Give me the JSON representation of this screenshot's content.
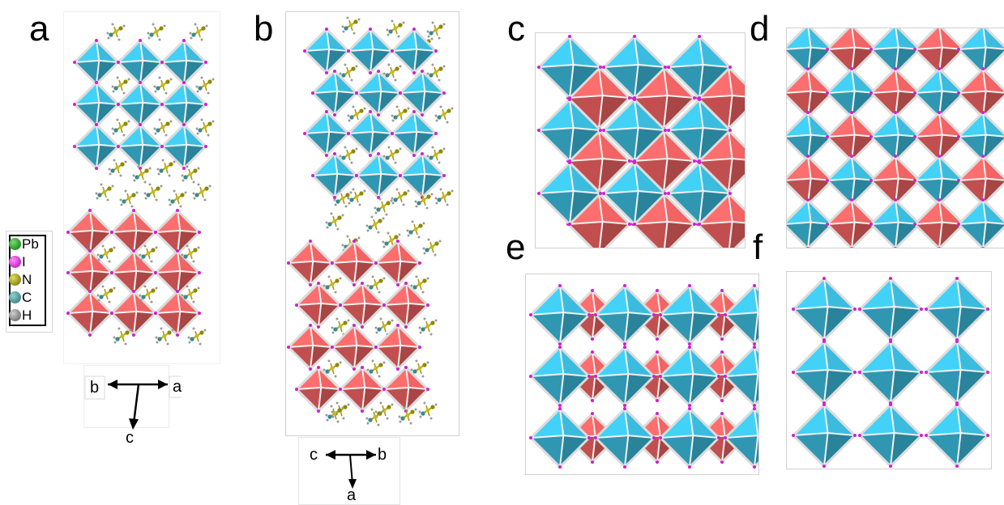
{
  "panels": [
    {
      "label": "a"
    },
    {
      "label": "b"
    },
    {
      "label": "c"
    },
    {
      "label": "d"
    },
    {
      "label": "e"
    },
    {
      "label": "f"
    }
  ],
  "legend": {
    "items": [
      {
        "label": "Pb",
        "color": "#1e8a1e"
      },
      {
        "label": "I",
        "color": "#e21ee2"
      },
      {
        "label": "N",
        "color": "#8c8a00"
      },
      {
        "label": "C",
        "color": "#3a8a8c"
      },
      {
        "label": "H",
        "color": "#8a8a8a"
      }
    ]
  },
  "axes": {
    "a": {
      "left": "b",
      "right": "a",
      "down": "c"
    },
    "b": {
      "left": "c",
      "right": "b",
      "down": "a"
    }
  },
  "colors": {
    "blue_octahedron": "#35a8c6",
    "red_octahedron": "#d85858",
    "frame_bond": "#dcdcdc",
    "iodine": "#d020d0"
  }
}
